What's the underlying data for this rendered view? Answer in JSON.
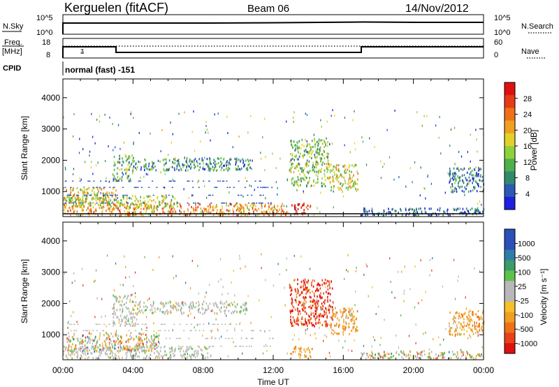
{
  "header": {
    "station": "Kerguelen (fitACF)",
    "beam": "Beam 06",
    "date": "14/Nov/2012"
  },
  "panels": {
    "nsky": {
      "left_label": "N.Sky",
      "left_ticks": [
        "10^5",
        "10^0"
      ],
      "right_ticks": [
        "10^5",
        "10^0"
      ],
      "right_label": "N.Search"
    },
    "freq": {
      "left_label_1": "Freq.",
      "left_label_2": "[MHz]",
      "left_ticks": [
        "18",
        "8"
      ],
      "right_ticks": [
        "60",
        "0"
      ],
      "right_label": "Nave"
    },
    "cpid": {
      "label": "CPID",
      "text": "normal (fast) -151"
    }
  },
  "colors": {
    "power": [
      "#1f1fe0",
      "#2d58b8",
      "#2f8a6e",
      "#4fb04a",
      "#8fd13c",
      "#e3d12a",
      "#f0a020",
      "#f07018",
      "#e83a18",
      "#e01010"
    ],
    "velocity_positive": [
      "#2c4fb8",
      "#2f7ea8",
      "#3d9a6a",
      "#5cc24a"
    ],
    "velocity_ground": "#b8b8b8",
    "velocity_negative": [
      "#f6c028",
      "#f0a020",
      "#f07018",
      "#e84018",
      "#e01010"
    ]
  },
  "chart_data": [
    {
      "type": "heatmap",
      "title": "",
      "ylabel": "Slant Range [km]",
      "y_ticks": [
        "1000",
        "2000",
        "3000",
        "4000"
      ],
      "ylim": [
        200,
        4600
      ],
      "xlim": [
        0,
        24
      ],
      "colorbar_label": "Power [dB]",
      "colorbar_ticks": [
        "4",
        "8",
        "12",
        "16",
        "20",
        "24",
        "28"
      ],
      "colorbar_range": [
        0,
        32
      ],
      "regions": [
        {
          "name": "",
          "t0": 0.0,
          "t1": 12.8,
          "r0": 250,
          "r1": 650,
          "level": 22
        },
        {
          "name": "",
          "t0": 0.0,
          "t1": 3.0,
          "r0": 650,
          "r1": 1150,
          "level": 18
        },
        {
          "name": "",
          "t0": 0.2,
          "t1": 6.5,
          "r0": 500,
          "r1": 900,
          "level": 16
        },
        {
          "name": "",
          "t0": 2.8,
          "t1": 4.0,
          "r0": 1350,
          "r1": 2200,
          "level": 11
        },
        {
          "name": "",
          "t0": 4.0,
          "t1": 10.8,
          "r0": 1700,
          "r1": 2100,
          "level": 9
        },
        {
          "name": "",
          "t0": 13.0,
          "t1": 14.2,
          "r0": 300,
          "r1": 650,
          "level": 30
        },
        {
          "name": "",
          "t0": 12.9,
          "t1": 15.2,
          "r0": 1200,
          "r1": 2700,
          "level": 13
        },
        {
          "name": "",
          "t0": 15.2,
          "t1": 16.8,
          "r0": 1050,
          "r1": 1900,
          "level": 17
        },
        {
          "name": "",
          "t0": 17.0,
          "t1": 24.0,
          "r0": 250,
          "r1": 500,
          "level": 5
        },
        {
          "name": "",
          "t0": 22.0,
          "t1": 24.0,
          "r0": 1000,
          "r1": 1800,
          "level": 6
        }
      ]
    },
    {
      "type": "heatmap",
      "title": "",
      "xlabel": "Time UT",
      "x_ticks": [
        "00:00",
        "04:00",
        "08:00",
        "12:00",
        "16:00",
        "20:00",
        "00:00"
      ],
      "ylabel": "Slant Range [km]",
      "y_ticks": [
        "1000",
        "2000",
        "3000",
        "4000"
      ],
      "ylim": [
        200,
        4600
      ],
      "xlim": [
        0,
        24
      ],
      "colorbar_label": "Velocity [m s⁻¹]",
      "colorbar_ticks": [
        "1000",
        "500",
        "100",
        "25",
        "-25",
        "-100",
        "-500",
        "-1000"
      ],
      "regions": [
        {
          "name": "",
          "t0": 0.0,
          "t1": 8.5,
          "r0": 250,
          "r1": 650,
          "kind": "ground"
        },
        {
          "name": "",
          "t0": 0.2,
          "t1": 5.5,
          "r0": 500,
          "r1": 1100,
          "kind": "mixed"
        },
        {
          "name": "",
          "t0": 2.8,
          "t1": 4.2,
          "r0": 1300,
          "r1": 2300,
          "kind": "ground"
        },
        {
          "name": "",
          "t0": 4.2,
          "t1": 10.5,
          "r0": 1700,
          "r1": 2100,
          "kind": "ground"
        },
        {
          "name": "",
          "t0": 13.0,
          "t1": 14.2,
          "r0": 300,
          "r1": 650,
          "kind": "negative"
        },
        {
          "name": "",
          "t0": 12.9,
          "t1": 15.4,
          "r0": 1300,
          "r1": 2800,
          "kind": "strong-negative"
        },
        {
          "name": "",
          "t0": 15.2,
          "t1": 16.8,
          "r0": 1050,
          "r1": 1900,
          "kind": "negative"
        },
        {
          "name": "",
          "t0": 17.0,
          "t1": 24.0,
          "r0": 250,
          "r1": 500,
          "kind": "mixed"
        },
        {
          "name": "",
          "t0": 22.0,
          "t1": 24.0,
          "r0": 1000,
          "r1": 1800,
          "kind": "negative"
        }
      ]
    }
  ]
}
